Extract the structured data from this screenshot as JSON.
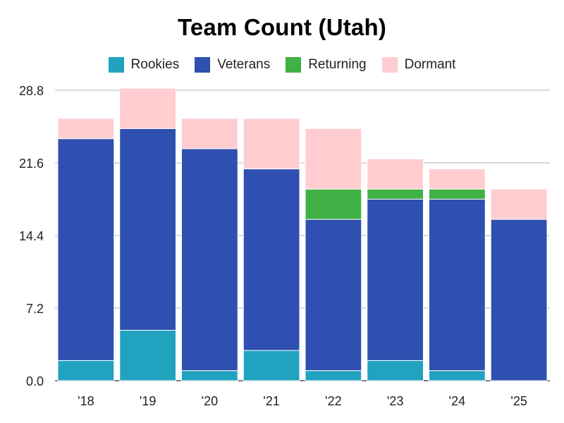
{
  "chart_data": {
    "type": "bar",
    "stacked": true,
    "title": "Team Count (Utah)",
    "categories": [
      "'18",
      "'19",
      "'20",
      "'21",
      "'22",
      "'23",
      "'24",
      "'25"
    ],
    "series": [
      {
        "name": "Rookies",
        "color": "#21a3c0",
        "values": [
          2,
          5,
          1,
          3,
          1,
          2,
          1,
          0
        ]
      },
      {
        "name": "Veterans",
        "color": "#2f50b0",
        "values": [
          22,
          20,
          22,
          18,
          15,
          16,
          17,
          16
        ]
      },
      {
        "name": "Returning",
        "color": "#40b144",
        "values": [
          0,
          0,
          0,
          0,
          3,
          1,
          1,
          0
        ]
      },
      {
        "name": "Dormant",
        "color": "#ffcdd0",
        "values": [
          2,
          4,
          3,
          5,
          6,
          3,
          2,
          3
        ]
      }
    ],
    "yticks": [
      "0.0",
      "7.2",
      "14.4",
      "21.6",
      "28.8"
    ],
    "ylim": [
      0,
      28.8
    ],
    "grid": true,
    "legend_position": "top"
  }
}
